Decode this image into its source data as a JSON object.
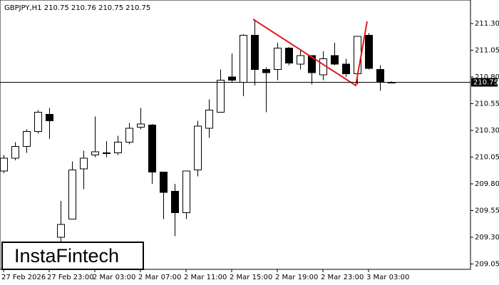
{
  "chart_data": {
    "type": "candlestick",
    "title": "GBPJPY,H1  210.75 210.76 210.75 210.75",
    "brand": "InstaFintech",
    "categories": [
      "27 Feb 2026",
      null,
      null,
      null,
      "27 Feb 23:00",
      null,
      null,
      null,
      "2 Mar 03:00",
      null,
      null,
      null,
      "2 Mar 07:00",
      null,
      null,
      null,
      "2 Mar 11:00",
      null,
      null,
      null,
      "2 Mar 15:00",
      null,
      null,
      null,
      "2 Mar 19:00",
      null,
      null,
      null,
      "2 Mar 23:00",
      null,
      null,
      null,
      "3 Mar 03:00",
      null,
      null
    ],
    "open": [
      209.92,
      210.04,
      210.15,
      210.29,
      210.45,
      209.3,
      209.47,
      209.94,
      210.07,
      210.09,
      210.09,
      210.19,
      210.33,
      210.35,
      209.91,
      209.73,
      209.53,
      209.93,
      210.32,
      210.47,
      210.8,
      210.75,
      211.19,
      210.87,
      210.87,
      211.07,
      210.92,
      211.0,
      210.82,
      211.0,
      210.92,
      210.83,
      211.19,
      210.87,
      210.75
    ],
    "high": [
      210.07,
      210.19,
      210.31,
      210.49,
      210.51,
      209.64,
      210.01,
      210.11,
      210.43,
      210.2,
      210.25,
      210.37,
      210.51,
      210.36,
      209.91,
      209.8,
      209.92,
      210.39,
      210.59,
      210.87,
      211.02,
      211.2,
      211.34,
      210.89,
      211.12,
      211.08,
      211.05,
      211.0,
      211.04,
      211.12,
      210.97,
      211.18,
      211.21,
      210.91,
      210.76
    ],
    "low": [
      209.9,
      210.02,
      210.09,
      210.27,
      210.22,
      209.25,
      209.47,
      209.75,
      210.05,
      210.05,
      210.07,
      210.17,
      210.31,
      209.8,
      209.47,
      209.31,
      209.47,
      209.87,
      210.23,
      210.47,
      210.75,
      210.62,
      210.72,
      210.47,
      210.77,
      210.91,
      210.87,
      210.73,
      210.77,
      210.91,
      210.8,
      210.73,
      210.87,
      210.67,
      210.75
    ],
    "close": [
      210.04,
      210.15,
      210.29,
      210.47,
      210.39,
      209.42,
      209.93,
      210.04,
      210.1,
      210.09,
      210.19,
      210.32,
      210.36,
      209.91,
      209.72,
      209.53,
      209.92,
      210.34,
      210.49,
      210.77,
      210.77,
      211.19,
      210.87,
      210.84,
      211.07,
      210.93,
      211.0,
      210.84,
      210.97,
      210.92,
      210.83,
      211.18,
      210.88,
      210.75,
      210.75
    ],
    "up_color": "#ffffff",
    "down_color": "#000000",
    "current_price": 210.75,
    "ylim": [
      209.0,
      211.52
    ],
    "yticks": [
      {
        "value": 209.05,
        "label": "209.05"
      },
      {
        "value": 209.3,
        "label": "209.30"
      },
      {
        "value": 209.55,
        "label": "209.55"
      },
      {
        "value": 209.8,
        "label": "209.80"
      },
      {
        "value": 210.05,
        "label": "210.05"
      },
      {
        "value": 210.3,
        "label": "210.30"
      },
      {
        "value": 210.55,
        "label": "210.55"
      },
      {
        "value": 210.8,
        "label": "210.80"
      },
      {
        "value": 211.05,
        "label": "211.05"
      },
      {
        "value": 211.3,
        "label": "211.30"
      }
    ]
  }
}
